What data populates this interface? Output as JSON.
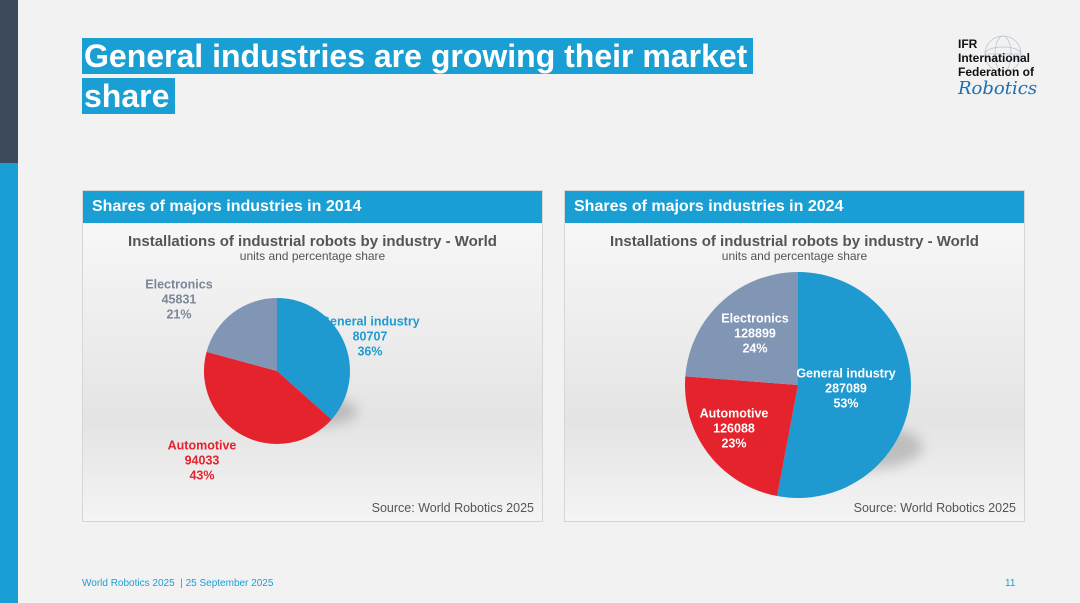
{
  "header": {
    "title": "General industries are growing their market share",
    "logo_lines": [
      "IFR",
      "International",
      "Federation of"
    ],
    "logo_script": "Robotics"
  },
  "chart_data": [
    {
      "type": "pie",
      "panel_title": "Shares of majors industries in 2014",
      "title": "Installations of industrial robots by industry - World",
      "subtitle": "units and percentage share",
      "categories": [
        "General industry",
        "Automotive",
        "Electronics"
      ],
      "values": [
        80707,
        94033,
        45831
      ],
      "share_labels": [
        "36%",
        "43%",
        "21%"
      ],
      "colors": [
        "#1f9ad0",
        "#e5232d",
        "#8096b4"
      ],
      "label_colors": [
        "#1f9ad0",
        "#e5232d",
        "#7b8798"
      ],
      "source": "Source: World Robotics 2025"
    },
    {
      "type": "pie",
      "panel_title": "Shares of majors industries in 2024",
      "title": "Installations of industrial robots by industry - World",
      "subtitle": "units and percentage share",
      "categories": [
        "General industry",
        "Automotive",
        "Electronics"
      ],
      "values": [
        287089,
        126088,
        128899
      ],
      "share_labels": [
        "53%",
        "23%",
        "24%"
      ],
      "colors": [
        "#1f9ad0",
        "#e5232d",
        "#8096b4"
      ],
      "label_colors": [
        "#ffffff",
        "#ffffff",
        "#ffffff"
      ],
      "source": "Source: World Robotics 2025"
    }
  ],
  "footer": {
    "text": "World Robotics 2025  | 25 September 2025",
    "page": "11"
  }
}
